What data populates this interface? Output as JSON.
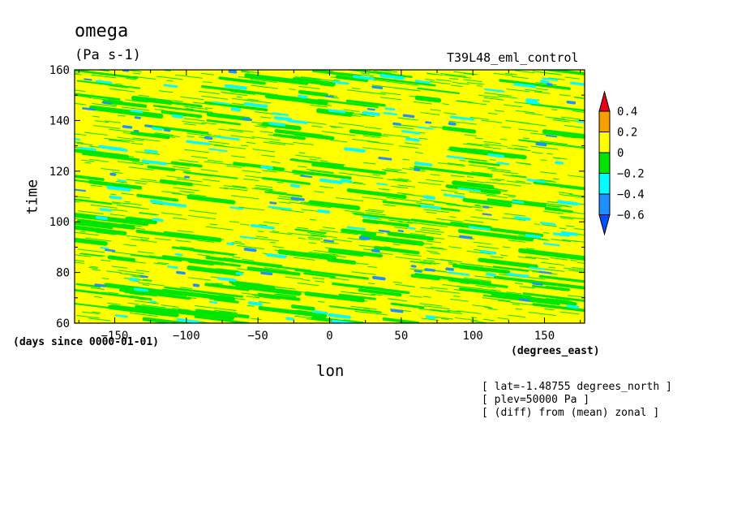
{
  "chart_data": {
    "type": "heatmap",
    "title": "omega",
    "subtitle": "(Pa s-1)",
    "run_label": "T39L48_eml_control",
    "xlabel": "lon",
    "xunits": "(degrees_east)",
    "ylabel": "time",
    "yunits": "(days since 0000-01-01)",
    "xlim": [
      -178,
      178
    ],
    "ylim": [
      60,
      160
    ],
    "x_ticks": [
      -150,
      -100,
      -50,
      0,
      50,
      100,
      150
    ],
    "x_tick_labels": [
      "-150",
      "-100",
      "-50",
      "0",
      "50",
      "100",
      "150"
    ],
    "y_ticks": [
      60,
      80,
      100,
      120,
      140,
      160
    ],
    "y_tick_labels": [
      "60",
      "80",
      "100",
      "120",
      "140",
      "160"
    ],
    "colorbar": {
      "levels": [
        "0.4",
        "0.2",
        "0",
        "-0.2",
        "-0.4",
        "-0.6"
      ],
      "colors": {
        "above_0.4": "#e8001a",
        "0.2_0.4": "#f5a000",
        "0_0.2": "#ffff00",
        "-0.2_0": "#00e600",
        "-0.4_-0.2": "#00ffff",
        "-0.6_-0.4": "#1e90ff",
        "below_-0.6": "#0050ff"
      }
    },
    "annotations": [
      "[ lat=-1.48755 degrees_north ]",
      "[ plev=50000 Pa ]",
      "[ (diff) from (mean) zonal ]"
    ],
    "grid": false
  }
}
